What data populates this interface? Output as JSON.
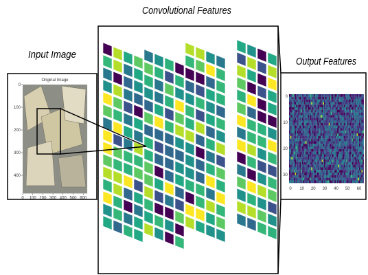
{
  "convolutional": {
    "label": "Convolutional Features"
  },
  "input": {
    "label": "Input Image",
    "plot_title": "Original Image",
    "xticks": [
      0,
      100,
      200,
      300,
      400,
      500,
      600
    ],
    "yticks": [
      0,
      100,
      200,
      300,
      400
    ]
  },
  "output": {
    "label": "Output Features",
    "xticks": [
      0,
      10,
      20,
      30,
      40,
      50,
      60
    ],
    "yticks": [
      0,
      10,
      20,
      30
    ]
  }
}
